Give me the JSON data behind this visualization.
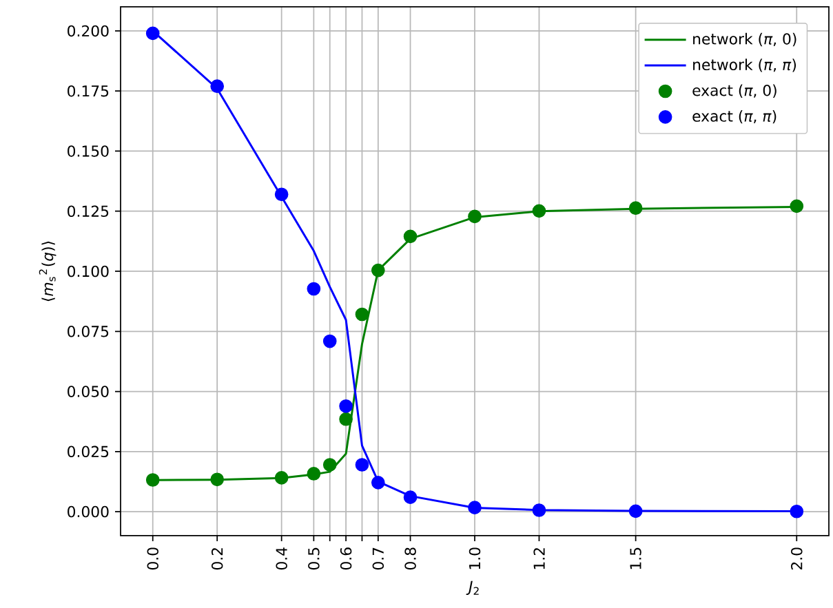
{
  "chart_data": {
    "type": "line",
    "xlabel": "*J*$_{2}$",
    "ylabel": "⟨*m*$_{s}$$^{2}$(*q*)⟩",
    "x": [
      0.0,
      0.2,
      0.4,
      0.5,
      0.55,
      0.6,
      0.65,
      0.7,
      0.8,
      1.0,
      1.2,
      1.5,
      2.0
    ],
    "series": [
      {
        "name": "network (*π*, 0)",
        "marker": "none",
        "color": "#008000",
        "values": [
          0.0131,
          0.0133,
          0.014,
          0.0155,
          0.0166,
          0.0241,
          0.0697,
          0.1004,
          0.1135,
          0.1225,
          0.125,
          0.126,
          0.1268
        ]
      },
      {
        "name": "network (*π*, *π*)",
        "marker": "none",
        "color": "#0000ff",
        "values": [
          0.2,
          0.176,
          0.131,
          0.1085,
          0.0935,
          0.0798,
          0.0275,
          0.0125,
          0.0065,
          0.0016,
          0.0007,
          0.0003,
          0.0002
        ]
      },
      {
        "name": "exact (*π*, 0)",
        "type": "scatter",
        "marker": "circle",
        "color": "#008000",
        "values": [
          0.0132,
          0.0134,
          0.0141,
          0.0158,
          0.0195,
          0.0385,
          0.0821,
          0.1004,
          0.1145,
          0.1228,
          0.1251,
          0.1263,
          0.1271
        ]
      },
      {
        "name": "exact (*π*, *π*)",
        "type": "scatter",
        "marker": "circle",
        "color": "#0000ff",
        "values": [
          0.199,
          0.177,
          0.132,
          0.0927,
          0.0709,
          0.0439,
          0.0195,
          0.0121,
          0.006,
          0.0017,
          0.0006,
          0.0002,
          0.0001
        ]
      }
    ],
    "xlim": [
      -0.1,
      2.1
    ],
    "ylim": [
      -0.01,
      0.21
    ],
    "xticks": [
      {
        "value": 0.0,
        "label": "0.0"
      },
      {
        "value": 0.2,
        "label": "0.2"
      },
      {
        "value": 0.4,
        "label": "0.4"
      },
      {
        "value": 0.5,
        "label": "0.5"
      },
      {
        "value": 0.55,
        "label": null
      },
      {
        "value": 0.6,
        "label": "0.6"
      },
      {
        "value": 0.65,
        "label": null
      },
      {
        "value": 0.7,
        "label": "0.7"
      },
      {
        "value": 0.8,
        "label": "0.8"
      },
      {
        "value": 1.0,
        "label": "1.0"
      },
      {
        "value": 1.2,
        "label": "1.2"
      },
      {
        "value": 1.5,
        "label": "1.5"
      },
      {
        "value": 2.0,
        "label": "2.0"
      }
    ],
    "yticks": [
      {
        "value": 0.0,
        "label": "0.000"
      },
      {
        "value": 0.025,
        "label": "0.025"
      },
      {
        "value": 0.05,
        "label": "0.050"
      },
      {
        "value": 0.075,
        "label": "0.075"
      },
      {
        "value": 0.1,
        "label": "0.100"
      },
      {
        "value": 0.125,
        "label": "0.125"
      },
      {
        "value": 0.15,
        "label": "0.150"
      },
      {
        "value": 0.175,
        "label": "0.175"
      },
      {
        "value": 0.2,
        "label": "0.200"
      }
    ],
    "grid": true,
    "legend": "top right"
  }
}
